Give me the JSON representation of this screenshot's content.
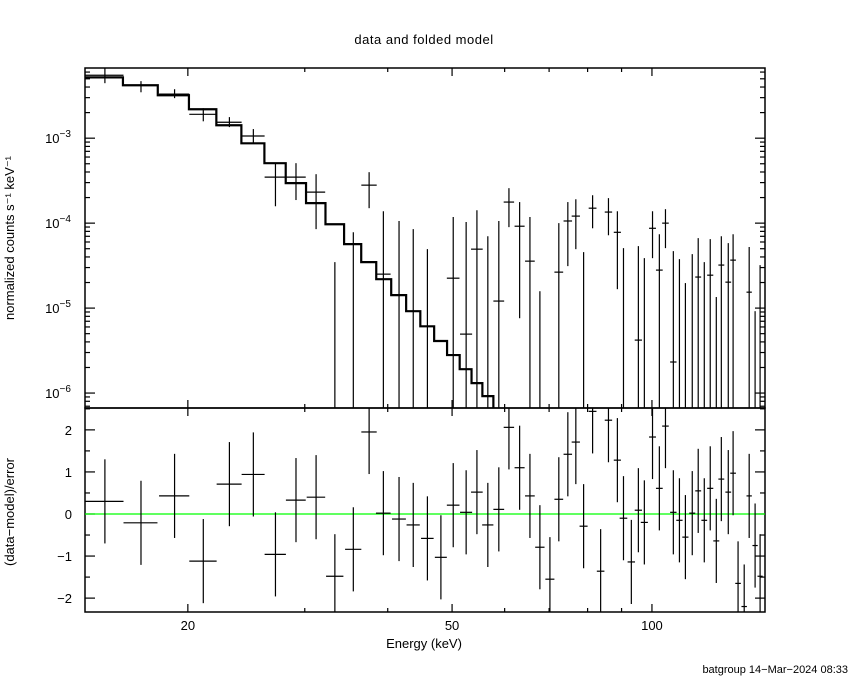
{
  "chart_data": [
    {
      "type": "scatter",
      "panel": "top",
      "title": "data and folded model",
      "ylabel": "normalized counts s⁻¹ keV⁻¹",
      "xlim": [
        14,
        148
      ],
      "ylim": [
        6.67e-07,
        0.0067
      ],
      "xscale": "log",
      "yscale": "log",
      "ytick_labels": [
        {
          "value": 0.001,
          "base": "10",
          "exp": "−3"
        },
        {
          "value": 0.0001,
          "base": "10",
          "exp": "−4"
        },
        {
          "value": 1e-05,
          "base": "10",
          "exp": "−5"
        },
        {
          "value": 1e-06,
          "base": "10",
          "exp": "−6"
        }
      ],
      "data_points_format": [
        "energy_keV",
        "energy_halfwidth_keV",
        "value",
        "lower",
        "upper"
      ],
      "data_points": [
        [
          15.0,
          1.0,
          0.00551,
          0.00444,
          0.00667
        ],
        [
          17.0,
          1.0,
          0.00421,
          0.00347,
          0.00469
        ],
        [
          19.1,
          1.0,
          0.0033,
          0.00296,
          0.00377
        ],
        [
          21.1,
          1.0,
          0.00191,
          0.00158,
          0.00225
        ],
        [
          23.1,
          1.0,
          0.00154,
          0.00135,
          0.00177
        ],
        [
          25.1,
          1.0,
          0.00106,
          0.00087,
          0.00128
        ],
        [
          27.1,
          1.0,
          0.000348,
          0.000158,
          0.000508
        ],
        [
          29.1,
          1.0,
          0.000348,
          0.000187,
          0.000508
        ],
        [
          31.2,
          1.0,
          0.000232,
          8.5e-05,
          0.000377
        ],
        [
          33.3,
          1.0,
          null,
          null,
          3.48e-05
        ],
        [
          35.5,
          1.0,
          null,
          null,
          7.8e-05
        ],
        [
          37.5,
          1.0,
          0.00028,
          0.00015,
          0.000398
        ],
        [
          39.4,
          1.0,
          2.51e-05,
          null,
          0.000138
        ],
        [
          41.6,
          1.0,
          null,
          null,
          0.000106
        ],
        [
          43.7,
          1.0,
          null,
          null,
          8.5e-05
        ],
        [
          45.9,
          1.0,
          null,
          null,
          4.94e-05
        ],
        [
          50.2,
          1.1,
          2.25e-05,
          null,
          0.000118
        ],
        [
          52.5,
          1.1,
          4.94e-06,
          null,
          0.000103
        ],
        [
          54.5,
          1.1,
          4.94e-05,
          null,
          0.000142
        ],
        [
          56.6,
          1.1,
          null,
          null,
          7e-05
        ],
        [
          58.8,
          1.1,
          1.21e-05,
          null,
          0.000106
        ],
        [
          60.9,
          1.1,
          0.000177,
          8.97e-05,
          0.000258
        ],
        [
          63.2,
          1.1,
          9.2e-05,
          7.6e-06,
          0.000177
        ],
        [
          65.5,
          1.1,
          3.57e-05,
          null,
          0.000118
        ],
        [
          67.8,
          1.1,
          null,
          null,
          1.58e-05
        ],
        [
          72.4,
          1.1,
          2.65e-05,
          null,
          0.0001
        ],
        [
          74.7,
          1.1,
          0.000106,
          3.12e-05,
          0.000177
        ],
        [
          76.8,
          1.1,
          0.000121,
          4.94e-05,
          0.000191
        ],
        [
          78.9,
          1.1,
          null,
          null,
          4.56e-05
        ],
        [
          81.4,
          1.1,
          0.00015,
          8.7e-05,
          0.000213
        ],
        [
          86.0,
          1.1,
          0.000135,
          7.2e-05,
          0.000197
        ],
        [
          88.7,
          1.1,
          7.8e-05,
          1.67e-05,
          0.000138
        ],
        [
          90.6,
          1.2,
          null,
          null,
          5.08e-05
        ],
        [
          95.4,
          1.2,
          4.2e-06,
          null,
          5.36e-05
        ],
        [
          97.4,
          1.2,
          null,
          null,
          3.87e-05
        ],
        [
          100.2,
          1.2,
          8.7e-05,
          3.87e-05,
          0.000138
        ],
        [
          102.6,
          1.2,
          2.8e-05,
          null,
          7.4e-05
        ],
        [
          104.8,
          1.2,
          0.0001,
          5.08e-05,
          0.000146
        ],
        [
          107.7,
          1.2,
          2.32e-06,
          null,
          4.69e-05
        ],
        [
          110.0,
          1.2,
          null,
          null,
          3.77e-05
        ],
        [
          112.3,
          1.2,
          null,
          null,
          1.97e-05
        ],
        [
          115.0,
          1.2,
          null,
          null,
          4.32e-05
        ],
        [
          117.4,
          1.2,
          2.32e-05,
          null,
          6.67e-05
        ],
        [
          119.9,
          1.2,
          null,
          null,
          3.48e-05
        ],
        [
          122.4,
          1.3,
          2.44e-05,
          null,
          6.49e-05
        ],
        [
          125.0,
          1.3,
          null,
          null,
          1.35e-05
        ],
        [
          127.2,
          1.3,
          3.21e-05,
          null,
          7e-05
        ],
        [
          130.3,
          1.3,
          2.02e-05,
          null,
          5.82e-05
        ],
        [
          132.5,
          1.3,
          3.67e-05,
          null,
          7.4e-05
        ],
        [
          140.1,
          1.3,
          1.54e-05,
          null,
          5.23e-05
        ],
        [
          143.0,
          1.3,
          null,
          null,
          9.2e-06
        ],
        [
          145.5,
          1.3,
          null,
          null,
          3.21e-05
        ]
      ],
      "model_format": [
        "energy_keV",
        "energy_halfwidth_keV",
        "value"
      ],
      "model": [
        [
          15.0,
          1.0,
          0.0052
        ],
        [
          17.0,
          1.0,
          0.0042
        ],
        [
          19.1,
          1.0,
          0.0032
        ],
        [
          21.1,
          1.0,
          0.00219
        ],
        [
          23.1,
          1.0,
          0.00142
        ],
        [
          25.1,
          1.0,
          0.00087
        ],
        [
          27.1,
          1.0,
          0.000508
        ],
        [
          29.1,
          1.0,
          0.000296
        ],
        [
          31.2,
          1.0,
          0.000172
        ],
        [
          33.3,
          1.0,
          9.7e-05
        ],
        [
          35.5,
          1.0,
          5.66e-05
        ],
        [
          37.5,
          1.0,
          3.48e-05
        ],
        [
          39.4,
          1.0,
          2.19e-05
        ],
        [
          41.6,
          1.0,
          1.42e-05
        ],
        [
          43.7,
          1.0,
          9.2e-06
        ],
        [
          45.9,
          1.0,
          6.1e-06
        ],
        [
          48.1,
          1.0,
          4.1e-06
        ],
        [
          50.2,
          1.1,
          2.8e-06
        ],
        [
          52.5,
          1.1,
          1.91e-06
        ],
        [
          54.5,
          1.1,
          1.31e-06
        ],
        [
          56.6,
          1.1,
          9.2e-07
        ]
      ]
    },
    {
      "type": "scatter",
      "panel": "bottom",
      "xlabel": "Energy (keV)",
      "ylabel": "(data−model)/error",
      "xlim": [
        14,
        148
      ],
      "ylim": [
        -2.33,
        2.52
      ],
      "xscale": "log",
      "xtick_labels": [
        {
          "value": 20,
          "label": "20"
        },
        {
          "value": 50,
          "label": "50"
        },
        {
          "value": 100,
          "label": "100"
        }
      ],
      "ytick_labels": [
        {
          "value": 2,
          "label": "2"
        },
        {
          "value": 1,
          "label": "1"
        },
        {
          "value": 0,
          "label": "0"
        },
        {
          "value": -1,
          "label": "−1"
        },
        {
          "value": -2,
          "label": "−2"
        }
      ],
      "reference_line": {
        "y": 0,
        "color": "#00ff00"
      },
      "residuals_format": [
        "energy_keV",
        "energy_halfwidth_keV",
        "residual"
      ],
      "residual_error": 1,
      "residuals": [
        [
          15.0,
          1.0,
          0.3
        ],
        [
          17.0,
          1.0,
          -0.21
        ],
        [
          19.1,
          1.0,
          0.43
        ],
        [
          21.1,
          1.0,
          -1.12
        ],
        [
          23.1,
          1.0,
          0.71
        ],
        [
          25.1,
          1.0,
          0.94
        ],
        [
          27.1,
          1.0,
          -0.96
        ],
        [
          29.1,
          1.0,
          0.33
        ],
        [
          31.2,
          1.0,
          0.4
        ],
        [
          33.3,
          1.0,
          -1.48
        ],
        [
          35.5,
          1.0,
          -0.84
        ],
        [
          37.5,
          1.0,
          1.95
        ],
        [
          39.4,
          1.0,
          0.02
        ],
        [
          41.6,
          1.0,
          -0.12
        ],
        [
          43.7,
          1.0,
          -0.26
        ],
        [
          45.9,
          1.0,
          -0.58
        ],
        [
          48.1,
          1.0,
          -1.03
        ],
        [
          50.2,
          1.1,
          0.21
        ],
        [
          52.5,
          1.1,
          0.04
        ],
        [
          54.5,
          1.1,
          0.52
        ],
        [
          56.6,
          1.1,
          -0.26
        ],
        [
          58.8,
          1.1,
          0.11
        ],
        [
          60.9,
          1.1,
          2.06
        ],
        [
          63.2,
          1.1,
          1.1
        ],
        [
          65.5,
          1.1,
          0.43
        ],
        [
          67.8,
          1.1,
          -0.79
        ],
        [
          70.2,
          1.1,
          -1.55
        ],
        [
          72.4,
          1.1,
          0.35
        ],
        [
          74.7,
          1.1,
          1.42
        ],
        [
          76.8,
          1.1,
          1.71
        ],
        [
          78.9,
          1.1,
          -0.29
        ],
        [
          81.4,
          1.1,
          2.44
        ],
        [
          83.7,
          1.1,
          -1.36
        ],
        [
          86.0,
          1.1,
          2.23
        ],
        [
          88.7,
          1.1,
          1.28
        ],
        [
          90.6,
          1.2,
          -0.1
        ],
        [
          93.1,
          1.2,
          -1.14
        ],
        [
          95.4,
          1.2,
          0.09
        ],
        [
          97.4,
          1.2,
          -0.2
        ],
        [
          100.2,
          1.2,
          1.83
        ],
        [
          102.6,
          1.2,
          0.61
        ],
        [
          104.8,
          1.2,
          2.09
        ],
        [
          107.7,
          1.2,
          0.04
        ],
        [
          110.0,
          1.2,
          -0.15
        ],
        [
          112.3,
          1.2,
          -0.55
        ],
        [
          115.0,
          1.2,
          0.02
        ],
        [
          117.4,
          1.2,
          0.55
        ],
        [
          119.9,
          1.2,
          -0.15
        ],
        [
          122.4,
          1.3,
          0.61
        ],
        [
          125.0,
          1.3,
          -0.64
        ],
        [
          127.2,
          1.3,
          0.83
        ],
        [
          130.3,
          1.3,
          0.52
        ],
        [
          132.5,
          1.3,
          0.97
        ],
        [
          134.8,
          1.3,
          -1.65
        ],
        [
          137.7,
          1.3,
          -2.2
        ],
        [
          140.1,
          1.3,
          0.43
        ],
        [
          143.0,
          1.3,
          -0.75
        ],
        [
          145.5,
          1.3,
          -1.48
        ]
      ]
    }
  ],
  "footer": "batgroup 14−Mar−2024 08:33",
  "colors": {
    "foreground": "#000000",
    "background": "#ffffff",
    "zero_line": "#00ff00"
  }
}
